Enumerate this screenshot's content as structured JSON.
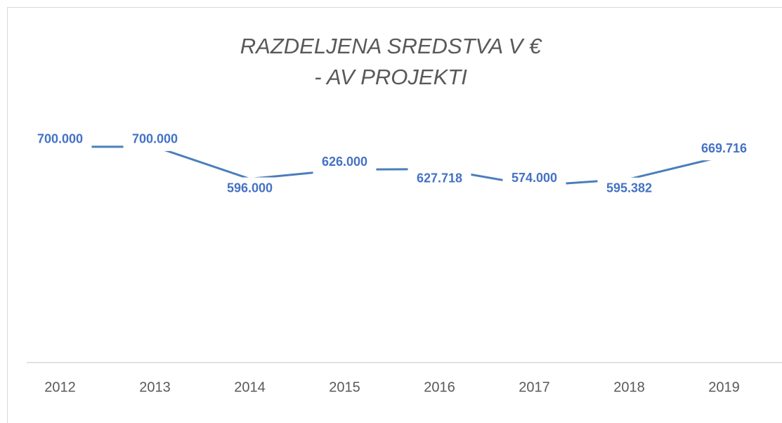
{
  "chart_data": {
    "type": "line",
    "title": [
      "RAZDELJENA SREDSTVA V €",
      "- AV PROJEKTI"
    ],
    "categories": [
      "2012",
      "2013",
      "2014",
      "2015",
      "2016",
      "2017",
      "2018",
      "2019"
    ],
    "series": [
      {
        "color": "#4a7ebb",
        "values": [
          700000,
          700000,
          596000,
          626000,
          627718,
          574000,
          595382,
          669716
        ],
        "value_labels": [
          "700.000",
          "700.000",
          "596.000",
          "626.000",
          "627.718",
          "574.000",
          "595.382",
          "669.716"
        ]
      }
    ],
    "ylim": [
      0,
      800000
    ]
  }
}
